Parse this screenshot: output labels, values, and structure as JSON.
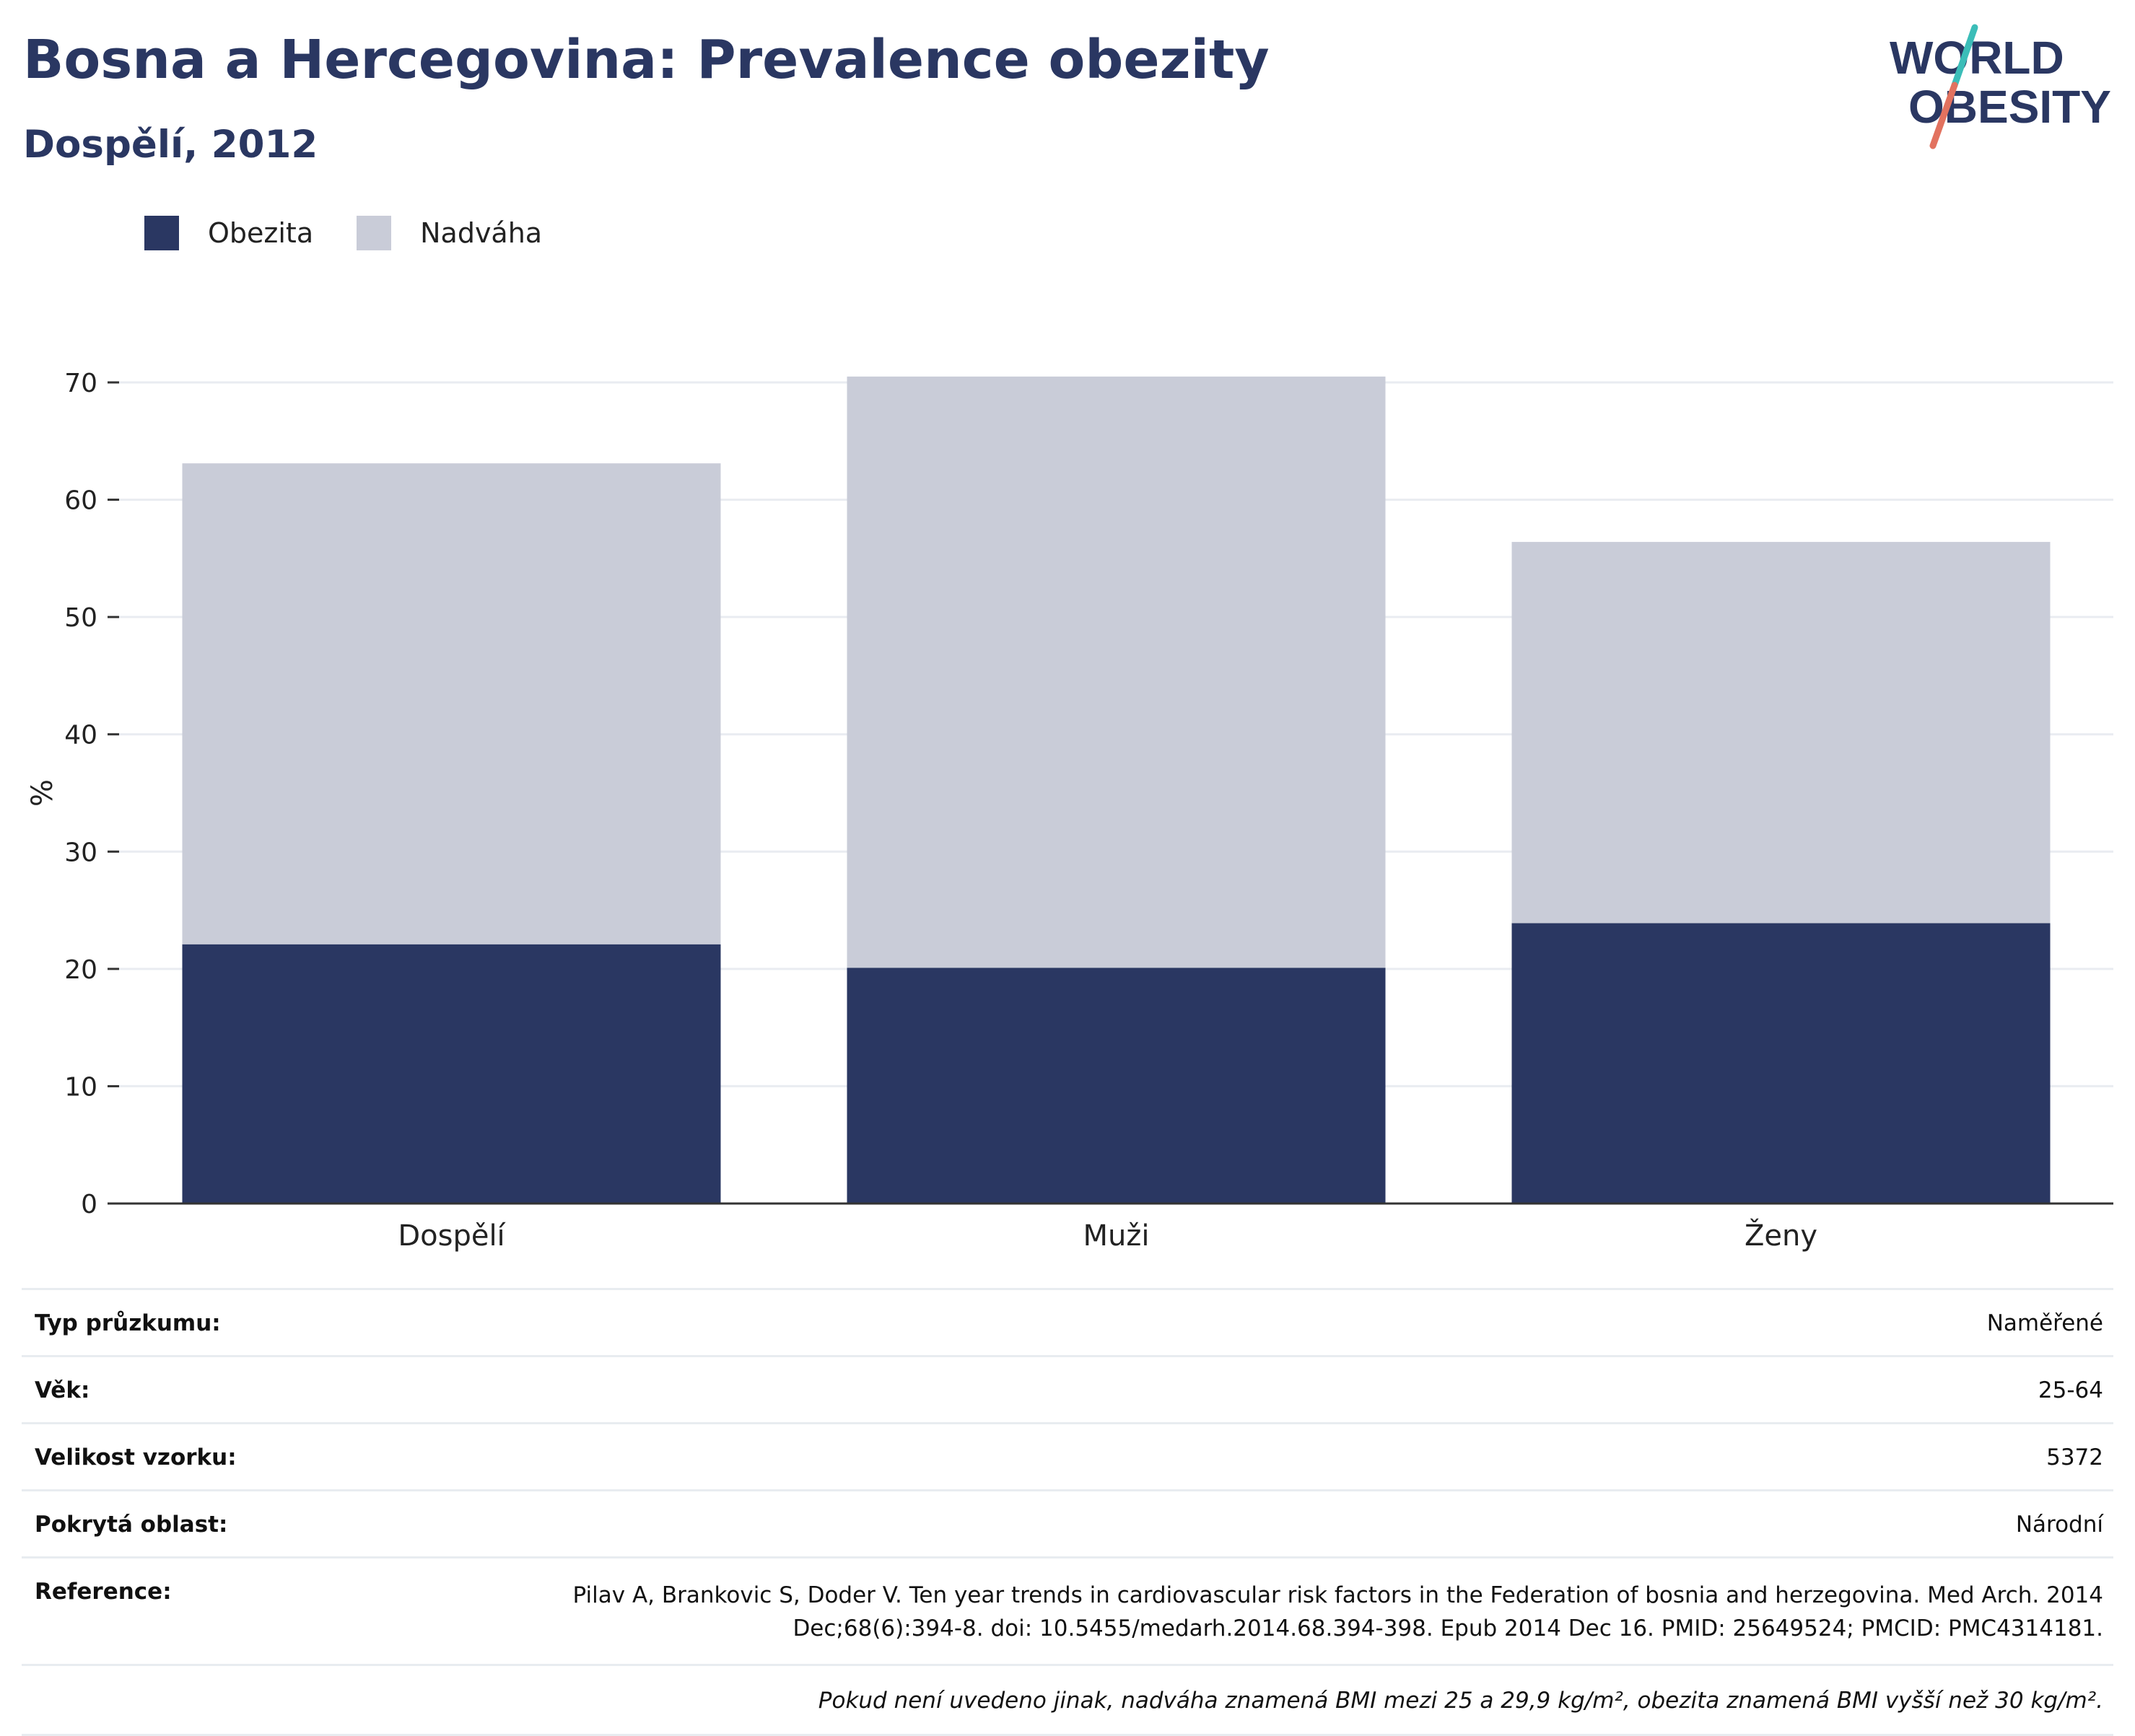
{
  "header": {
    "title": "Bosna a Hercegovina: Prevalence obezity",
    "subtitle": "Dospělí, 2012"
  },
  "logo": {
    "line1": "WORLD",
    "line2": "OBESITY",
    "colors": {
      "text": "#2a3762",
      "slash_top": "#3bbdb8",
      "slash_bottom": "#e2725f"
    }
  },
  "legend": [
    {
      "label": "Obezita",
      "color": "#2a3762"
    },
    {
      "label": "Nadváha",
      "color": "#c9ccd8"
    }
  ],
  "chart_data": {
    "type": "bar",
    "stacked": true,
    "categories": [
      "Dospělí",
      "Muži",
      "Ženy"
    ],
    "series": [
      {
        "name": "Obezita",
        "values": [
          22.1,
          20.1,
          23.9
        ],
        "color": "#2a3762"
      },
      {
        "name": "Nadváha",
        "values": [
          41.0,
          50.4,
          32.5
        ],
        "color": "#c9ccd8"
      }
    ],
    "ylabel": "%",
    "ylim": [
      0,
      70
    ],
    "yticks": [
      0,
      10,
      20,
      30,
      40,
      50,
      60,
      70
    ],
    "grid": true,
    "legend_position": "top-left"
  },
  "info": {
    "rows": [
      {
        "label": "Typ průzkumu:",
        "value": "Naměřené"
      },
      {
        "label": "Věk:",
        "value": "25-64"
      },
      {
        "label": "Velikost vzorku:",
        "value": "5372"
      },
      {
        "label": "Pokrytá oblast:",
        "value": "Národní"
      }
    ],
    "reference": {
      "label": "Reference:",
      "line1": "Pilav A, Brankovic S, Doder V. Ten year trends in cardiovascular risk factors in the Federation of bosnia and herzegovina. Med Arch. 2014",
      "line2": "Dec;68(6):394-8. doi: 10.5455/medarh.2014.68.394-398. Epub 2014 Dec 16. PMID: 25649524; PMCID: PMC4314181."
    },
    "note": "Pokud není uvedeno jinak, nadváha znamená BMI mezi 25 a 29,9 kg/m², obezita znamená BMI vyšší než 30 kg/m²."
  }
}
